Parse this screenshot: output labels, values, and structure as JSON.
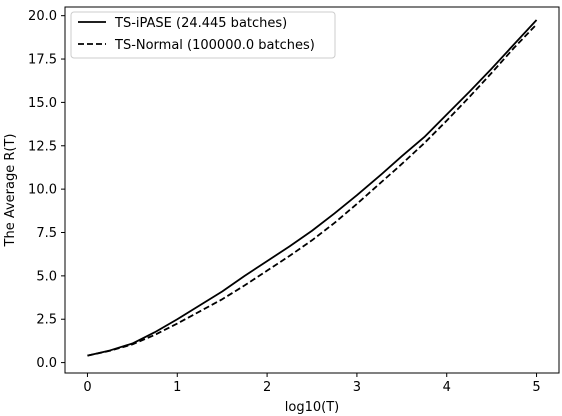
{
  "chart_data": {
    "type": "line",
    "xlabel": "log10(T)",
    "ylabel": "The Average R(T)",
    "xlim": [
      -0.25,
      5.25
    ],
    "ylim": [
      -0.6,
      20.5
    ],
    "xticks": [
      0,
      1,
      2,
      3,
      4,
      5
    ],
    "xtick_labels": [
      "0",
      "1",
      "2",
      "3",
      "4",
      "5"
    ],
    "yticks": [
      0.0,
      2.5,
      5.0,
      7.5,
      10.0,
      12.5,
      15.0,
      17.5,
      20.0
    ],
    "ytick_labels": [
      "0.0",
      "2.5",
      "5.0",
      "7.5",
      "10.0",
      "12.5",
      "15.0",
      "17.5",
      "20.0"
    ],
    "grid": false,
    "legend_position": "top-left",
    "series": [
      {
        "name": "TS-iPASE (24.445 batches)",
        "style": "solid",
        "color": "#000000",
        "x": [
          0,
          0.25,
          0.5,
          0.75,
          1.0,
          1.25,
          1.5,
          1.75,
          2.0,
          2.25,
          2.5,
          2.75,
          3.0,
          3.25,
          3.5,
          3.75,
          4.0,
          4.25,
          4.5,
          4.75,
          5.0
        ],
        "y": [
          0.4,
          0.7,
          1.1,
          1.75,
          2.5,
          3.3,
          4.1,
          5.0,
          5.85,
          6.7,
          7.6,
          8.6,
          9.65,
          10.75,
          11.9,
          13.0,
          14.3,
          15.6,
          16.95,
          18.35,
          19.75
        ]
      },
      {
        "name": "TS-Normal (100000.0 batches)",
        "style": "dashed",
        "color": "#000000",
        "x": [
          0,
          0.25,
          0.5,
          0.75,
          1.0,
          1.25,
          1.5,
          1.75,
          2.0,
          2.25,
          2.5,
          2.75,
          3.0,
          3.25,
          3.5,
          3.75,
          4.0,
          4.25,
          4.5,
          4.75,
          5.0
        ],
        "y": [
          0.4,
          0.68,
          1.05,
          1.6,
          2.25,
          2.95,
          3.65,
          4.45,
          5.3,
          6.15,
          7.05,
          8.05,
          9.15,
          10.3,
          11.45,
          12.65,
          13.95,
          15.3,
          16.7,
          18.15,
          19.5
        ]
      }
    ]
  }
}
